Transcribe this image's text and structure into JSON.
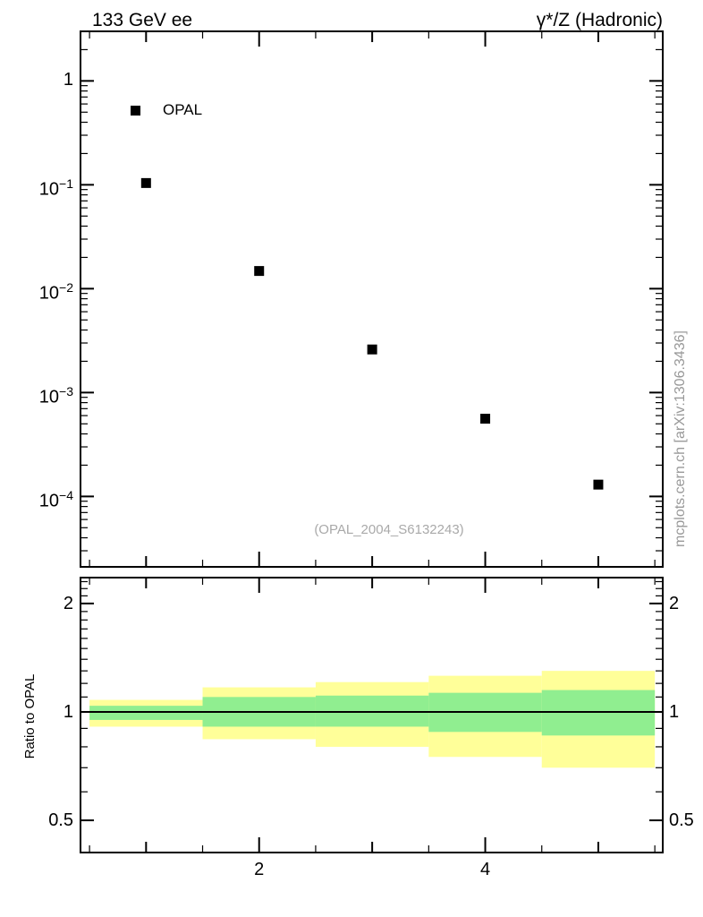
{
  "header": {
    "title_left": "133 GeV ee",
    "title_right": "γ*/Z (Hadronic)"
  },
  "legend": {
    "items": [
      {
        "marker": "black-filled-square",
        "label": "OPAL"
      }
    ]
  },
  "watermark": "(OPAL_2004_S6132243)",
  "side_caption": "mcplots.cern.ch [arXiv:1306.3436]",
  "colors": {
    "marker": "#000000",
    "outer_band": "#ffff99",
    "inner_band": "#90ee90",
    "axis": "#000000",
    "watermark_gray": "#a9a9a9",
    "caption_gray": "#999999"
  },
  "chart_data": [
    {
      "type": "scatter",
      "panel": "main",
      "x_range": [
        0.42,
        5.57
      ],
      "y_range": [
        2.1e-05,
        3.0
      ],
      "y_scale": "log",
      "x_scale": "linear",
      "grid": false,
      "legend_position": "top-left-inside",
      "series": [
        {
          "name": "OPAL",
          "marker": "filled-square",
          "points": [
            [
              1,
              0.104
            ],
            [
              2,
              0.0148
            ],
            [
              3,
              0.0026
            ],
            [
              4,
              0.00056
            ],
            [
              5,
              0.00013
            ]
          ]
        }
      ],
      "y_ticks": [
        {
          "v": 1,
          "base": "1",
          "exp": ""
        },
        {
          "v": 0.1,
          "base": "10",
          "exp": "−1"
        },
        {
          "v": 0.01,
          "base": "10",
          "exp": "−2"
        },
        {
          "v": 0.001,
          "base": "10",
          "exp": "−3"
        },
        {
          "v": 0.0001,
          "base": "10",
          "exp": "−4"
        }
      ],
      "x_ticks_labeled": []
    },
    {
      "type": "area",
      "panel": "ratio",
      "ylabel": "Ratio to OPAL",
      "x_range": [
        0.42,
        5.57
      ],
      "y_range": [
        0.407,
        2.36
      ],
      "y_scale": "log",
      "reference_line": 1,
      "bin_edges": [
        0.5,
        1.5,
        2.5,
        3.5,
        4.5,
        5.5
      ],
      "outer_band": {
        "high": [
          1.08,
          1.17,
          1.21,
          1.26,
          1.3
        ],
        "low": [
          0.91,
          0.84,
          0.8,
          0.75,
          0.7
        ]
      },
      "inner_band": {
        "high": [
          1.04,
          1.1,
          1.11,
          1.13,
          1.15
        ],
        "low": [
          0.95,
          0.91,
          0.91,
          0.88,
          0.86
        ]
      },
      "y_ticks": [
        {
          "v": 2,
          "label": "2"
        },
        {
          "v": 1,
          "label": "1"
        },
        {
          "v": 0.5,
          "label": "0.5"
        }
      ],
      "x_ticks_labeled": [
        {
          "v": 2,
          "label": "2"
        },
        {
          "v": 4,
          "label": "4"
        }
      ]
    }
  ]
}
